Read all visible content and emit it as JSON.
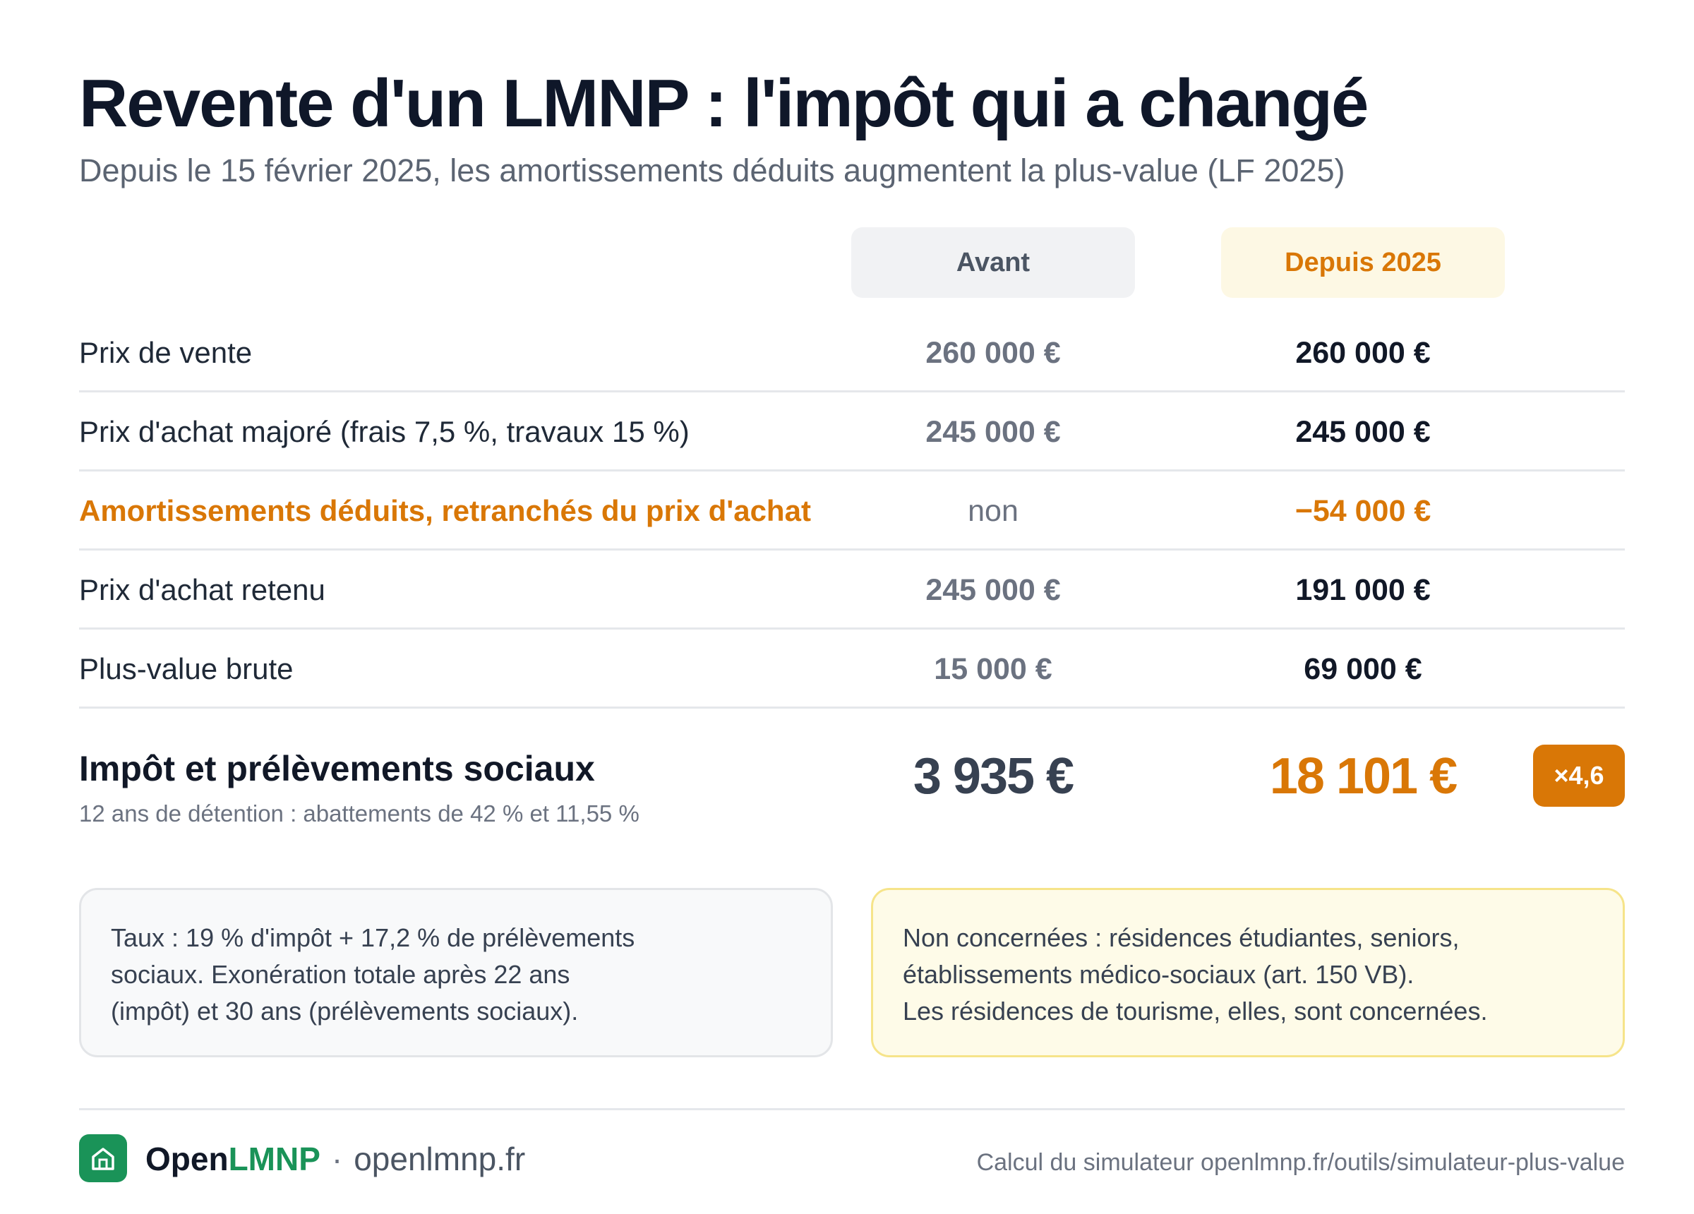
{
  "title": "Revente d'un LMNP : l'impôt qui a changé",
  "subtitle": "Depuis le 15 février 2025, les amortissements déduits augmentent la plus-value (LF 2025)",
  "columns": {
    "before": "Avant",
    "after": "Depuis 2025"
  },
  "rows": [
    {
      "label": "Prix de vente",
      "before": "260 000 €",
      "after": "260 000 €"
    },
    {
      "label": "Prix d'achat majoré (frais 7,5 %, travaux 15 %)",
      "before": "245 000 €",
      "after": "245 000 €"
    },
    {
      "label": "Amortissements déduits, retranchés du prix d'achat",
      "before": "non",
      "after": "−54 000 €"
    },
    {
      "label": "Prix d'achat retenu",
      "before": "245 000 €",
      "after": "191 000 €"
    },
    {
      "label": "Plus-value brute",
      "before": "15 000 €",
      "after": "69 000 €"
    }
  ],
  "total": {
    "label": "Impôt et prélèvements sociaux",
    "note": "12 ans de détention : abattements de 42 % et 11,55 %",
    "before": "3 935 €",
    "after": "18 101 €",
    "multiplier": "×4,6"
  },
  "cards": {
    "rates": [
      "Taux : 19 % d'impôt + 17,2 % de prélèvements",
      "sociaux. Exonération totale après 22 ans",
      "(impôt) et 30 ans (prélèvements sociaux)."
    ],
    "exemptions": [
      "Non concernées : résidences étudiantes, seniors,",
      "établissements médico-sociaux (art. 150 VB).",
      "Les résidences de tourisme, elles, sont concernées."
    ]
  },
  "footer": {
    "logo_icon": "house-icon",
    "brand_part1": "Open",
    "brand_part2": "LMNP",
    "separator": "·",
    "site": "openlmnp.fr",
    "credit": "Calcul du simulateur openlmnp.fr/outils/simulateur-plus-value"
  },
  "colors": {
    "accent": "#d97706",
    "brand_green": "#1a9358",
    "title": "#0f1729",
    "muted": "#6b7280"
  }
}
